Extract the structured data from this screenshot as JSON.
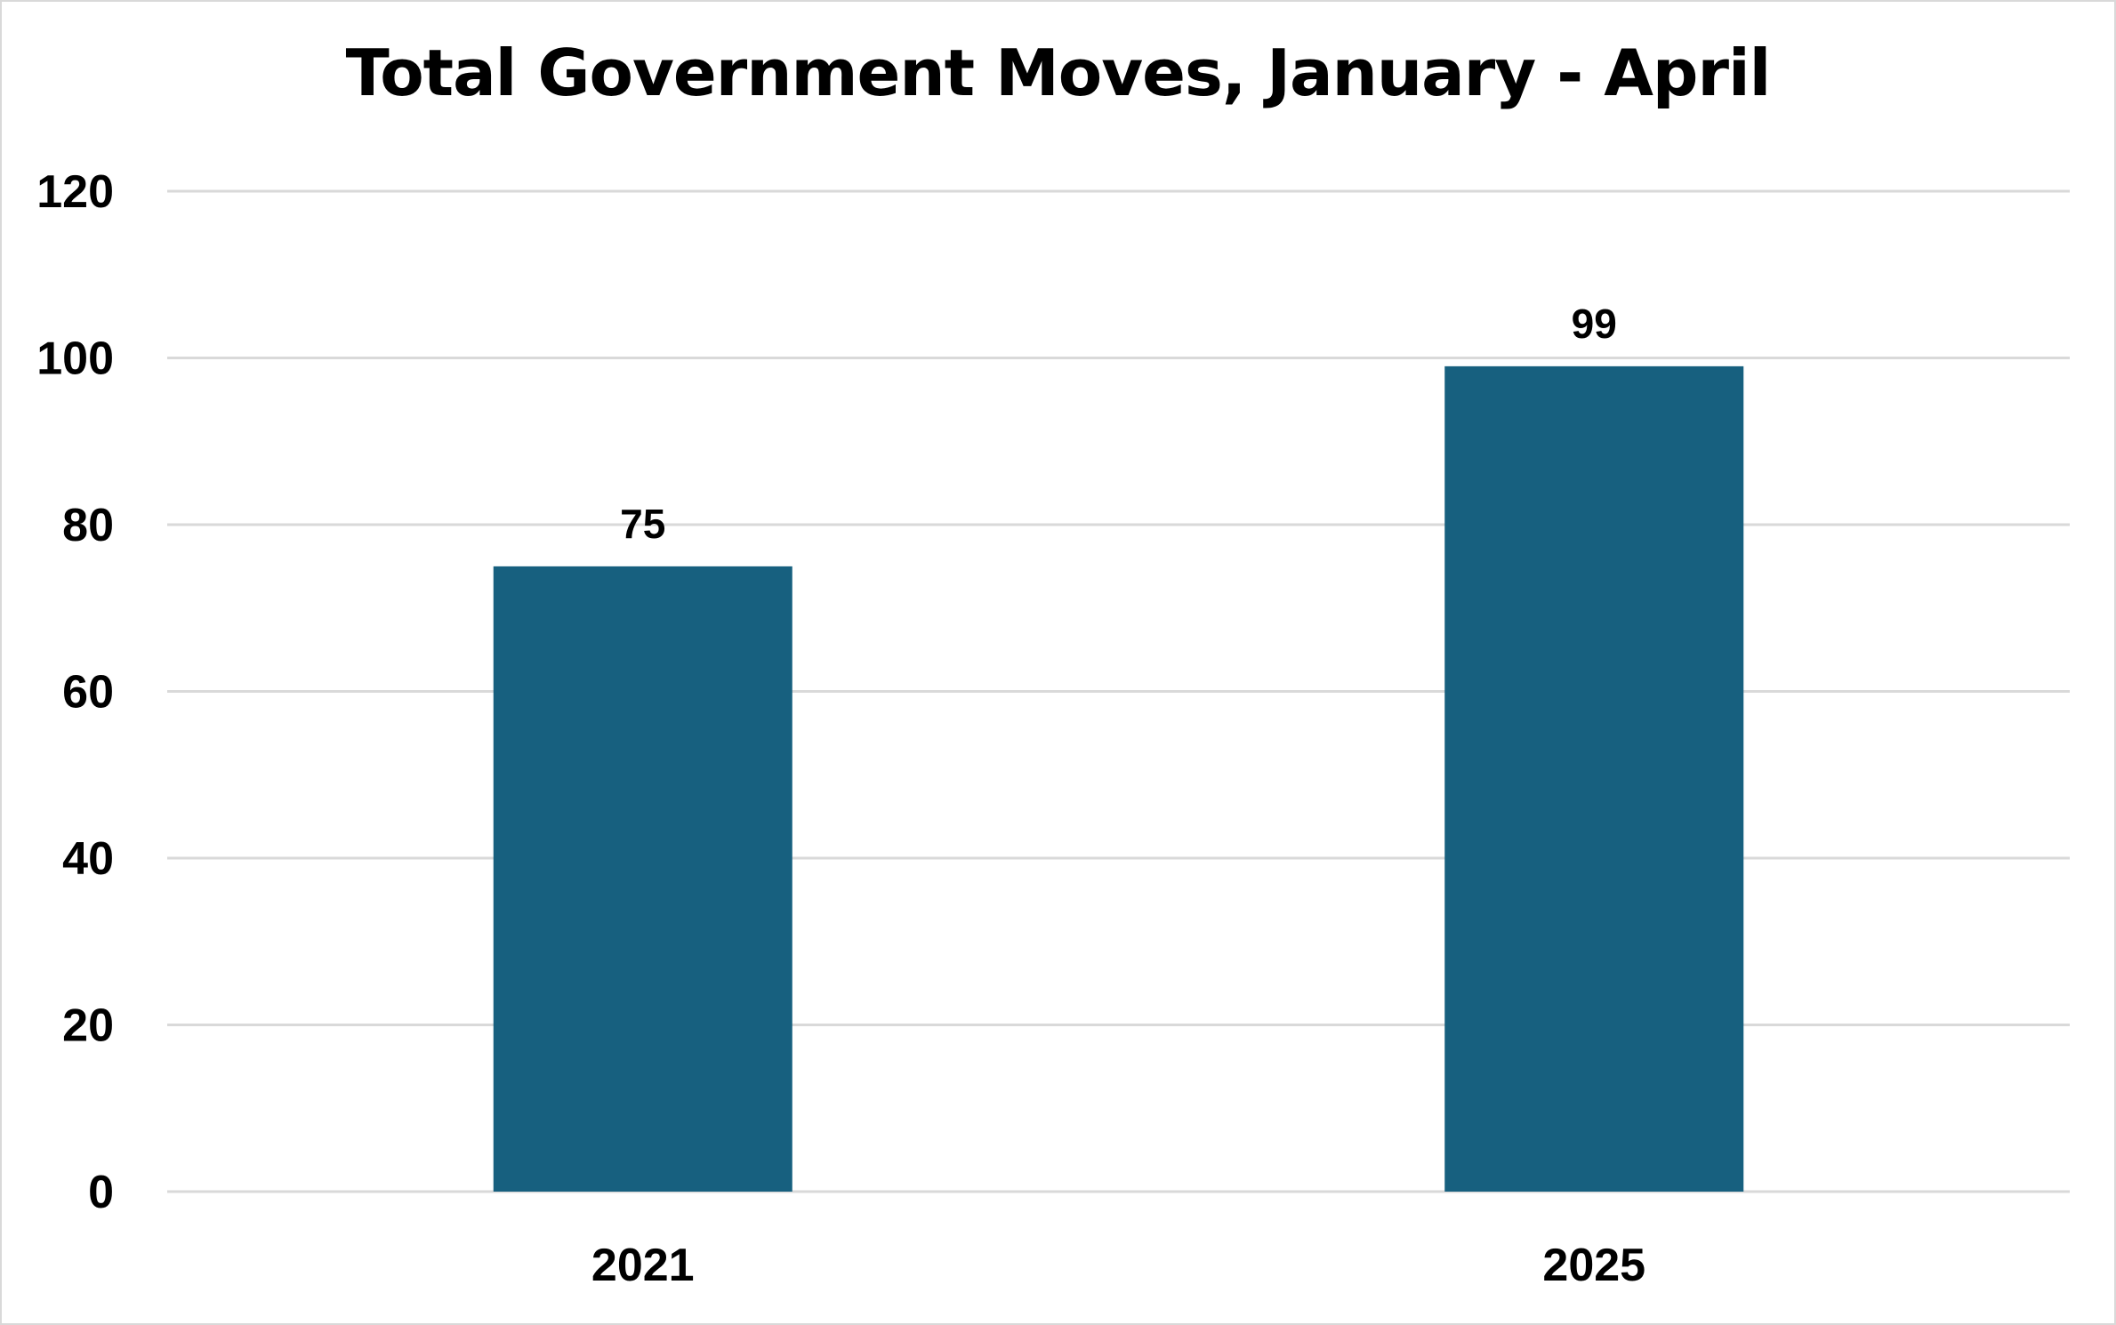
{
  "chart_data": {
    "type": "bar",
    "title": "Total Government Moves, January - April",
    "categories": [
      "2021",
      "2025"
    ],
    "values": [
      75,
      99
    ],
    "data_labels": [
      "75",
      "99"
    ],
    "xlabel": "",
    "ylabel": "",
    "ylim": [
      0,
      120
    ],
    "yticks": [
      0,
      20,
      40,
      60,
      80,
      100,
      120
    ],
    "ytick_labels": [
      "0",
      "20",
      "40",
      "60",
      "80",
      "100",
      "120"
    ],
    "grid": true,
    "legend": "none",
    "bar_color": "#17607f",
    "gridline_color": "#d9d9d9"
  }
}
